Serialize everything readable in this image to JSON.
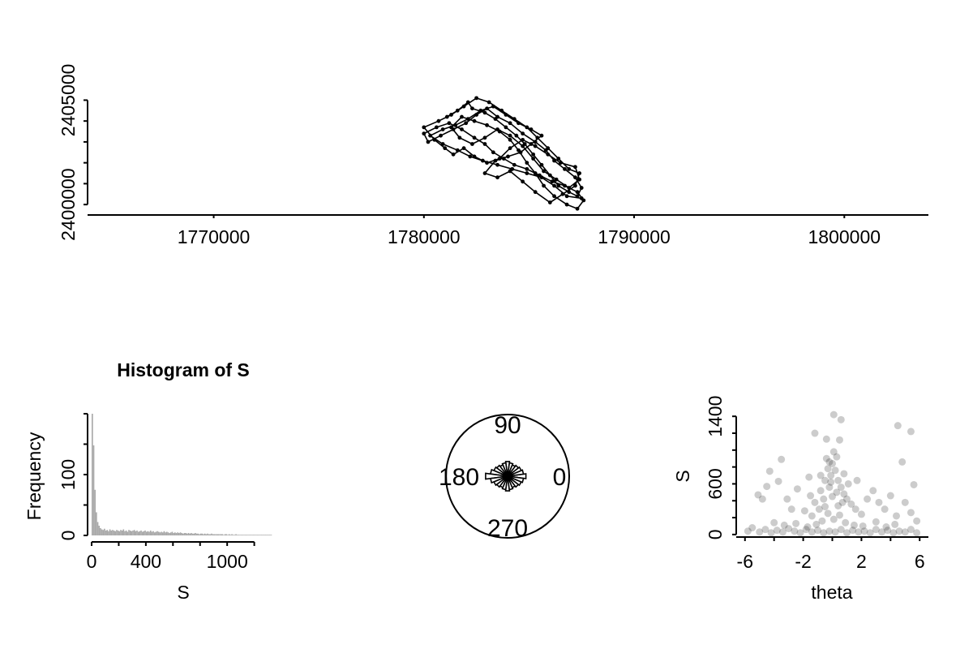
{
  "chart_data": [
    {
      "type": "line",
      "title": "",
      "xlabel": "",
      "ylabel": "",
      "xlim": [
        1764000,
        1804000
      ],
      "ylim": [
        2399500,
        2405600
      ],
      "x_ticks": [
        1770000,
        1780000,
        1790000,
        1800000
      ],
      "x_tick_labels": [
        "1770000",
        "1780000",
        "1790000",
        "1800000"
      ],
      "y_ticks": [
        2400000,
        2405000
      ],
      "y_tick_labels": [
        "2400000",
        "2405000"
      ],
      "y_minor_ticks": [
        2400000,
        2401000,
        2402000,
        2403000,
        2404000,
        2405000
      ],
      "points": [
        [
          1781100,
          2404200
        ],
        [
          1781600,
          2404500
        ],
        [
          1782100,
          2404900
        ],
        [
          1782300,
          2404600
        ],
        [
          1782900,
          2404400
        ],
        [
          1783400,
          2404100
        ],
        [
          1783900,
          2403700
        ],
        [
          1784400,
          2403300
        ],
        [
          1784800,
          2402900
        ],
        [
          1785200,
          2402400
        ],
        [
          1785600,
          2401900
        ],
        [
          1786000,
          2401400
        ],
        [
          1786400,
          2400900
        ],
        [
          1786900,
          2400600
        ],
        [
          1787300,
          2400400
        ],
        [
          1787500,
          2400800
        ],
        [
          1787200,
          2401300
        ],
        [
          1786700,
          2401700
        ],
        [
          1786200,
          2402100
        ],
        [
          1785800,
          2402600
        ],
        [
          1785300,
          2403000
        ],
        [
          1784700,
          2403400
        ],
        [
          1784100,
          2403900
        ],
        [
          1783500,
          2404200
        ],
        [
          1783000,
          2404600
        ],
        [
          1782500,
          2404300
        ],
        [
          1782000,
          2403900
        ],
        [
          1781400,
          2403600
        ],
        [
          1780800,
          2403300
        ],
        [
          1780200,
          2403000
        ],
        [
          1780000,
          2403400
        ],
        [
          1780600,
          2403700
        ],
        [
          1781200,
          2403900
        ],
        [
          1781800,
          2403600
        ],
        [
          1782400,
          2403200
        ],
        [
          1782900,
          2402900
        ],
        [
          1783300,
          2402500
        ],
        [
          1783800,
          2402200
        ],
        [
          1784300,
          2401900
        ],
        [
          1784900,
          2401700
        ],
        [
          1785500,
          2401400
        ],
        [
          1786100,
          2401100
        ],
        [
          1786700,
          2400900
        ],
        [
          1787300,
          2400600
        ],
        [
          1787600,
          2400200
        ],
        [
          1787300,
          2399800
        ],
        [
          1786800,
          2400000
        ],
        [
          1786200,
          2400400
        ],
        [
          1785700,
          2400900
        ],
        [
          1785300,
          2401500
        ],
        [
          1784900,
          2402000
        ],
        [
          1784500,
          2402600
        ],
        [
          1784100,
          2403100
        ],
        [
          1783600,
          2403500
        ],
        [
          1783000,
          2403800
        ],
        [
          1782400,
          2404000
        ],
        [
          1781800,
          2404200
        ],
        [
          1781300,
          2403700
        ],
        [
          1781700,
          2403200
        ],
        [
          1782300,
          2402900
        ],
        [
          1782900,
          2403200
        ],
        [
          1783500,
          2403600
        ],
        [
          1784100,
          2403300
        ],
        [
          1784700,
          2402800
        ],
        [
          1785200,
          2402200
        ],
        [
          1785700,
          2401600
        ],
        [
          1786300,
          2401200
        ],
        [
          1786900,
          2400800
        ],
        [
          1787400,
          2401200
        ],
        [
          1787200,
          2401800
        ],
        [
          1786500,
          2402000
        ],
        [
          1785900,
          2402400
        ],
        [
          1785300,
          2402800
        ],
        [
          1784700,
          2403100
        ],
        [
          1784100,
          2402700
        ],
        [
          1783600,
          2402200
        ],
        [
          1783000,
          2402000
        ],
        [
          1782400,
          2402300
        ],
        [
          1781900,
          2402700
        ],
        [
          1781400,
          2402400
        ],
        [
          1781000,
          2402700
        ],
        [
          1780500,
          2403100
        ],
        [
          1780000,
          2403700
        ],
        [
          1780700,
          2404000
        ],
        [
          1781300,
          2404300
        ],
        [
          1781900,
          2404700
        ],
        [
          1782500,
          2405100
        ],
        [
          1783100,
          2404900
        ],
        [
          1783700,
          2404500
        ],
        [
          1784300,
          2404100
        ],
        [
          1784900,
          2403700
        ],
        [
          1785400,
          2403200
        ],
        [
          1785900,
          2402700
        ],
        [
          1786400,
          2402200
        ],
        [
          1786900,
          2401700
        ],
        [
          1787400,
          2401500
        ],
        [
          1787200,
          2400900
        ],
        [
          1786600,
          2400500
        ],
        [
          1786000,
          2400100
        ],
        [
          1785300,
          2400600
        ],
        [
          1784700,
          2401100
        ],
        [
          1784100,
          2401600
        ],
        [
          1783500,
          2401300
        ],
        [
          1782900,
          2401500
        ],
        [
          1783400,
          2402100
        ],
        [
          1784000,
          2402300
        ],
        [
          1784600,
          2402500
        ],
        [
          1785100,
          2402900
        ],
        [
          1785600,
          2403300
        ],
        [
          1785100,
          2403600
        ],
        [
          1784500,
          2403900
        ],
        [
          1783900,
          2404300
        ],
        [
          1783300,
          2404700
        ],
        [
          1782700,
          2404500
        ],
        [
          1782100,
          2404100
        ],
        [
          1781500,
          2403800
        ],
        [
          1780900,
          2403600
        ],
        [
          1780300,
          2403300
        ],
        [
          1780900,
          2402900
        ],
        [
          1781600,
          2402600
        ],
        [
          1782200,
          2402300
        ],
        [
          1782800,
          2402100
        ],
        [
          1783500,
          2401900
        ],
        [
          1784200,
          2401700
        ],
        [
          1784900,
          2401500
        ],
        [
          1785600,
          2401300
        ],
        [
          1786200,
          2400900
        ],
        [
          1786800,
          2400400
        ],
        [
          1787500,
          2400300
        ]
      ]
    },
    {
      "type": "bar",
      "title": "Histogram of S",
      "xlabel": "S",
      "ylabel": "Frequency",
      "xlim": [
        -30,
        1340
      ],
      "ylim": [
        0,
        200
      ],
      "x_ticks": [
        0,
        400,
        1000
      ],
      "x_tick_labels": [
        "0",
        "400",
        "1000"
      ],
      "x_minor_ticks": [
        0,
        200,
        400,
        600,
        800,
        1000,
        1200
      ],
      "y_ticks": [
        0,
        100
      ],
      "y_tick_labels": [
        "0",
        "100"
      ],
      "y_minor_ticks": [
        0,
        50,
        100,
        150,
        200
      ],
      "bin_width": 10,
      "bin_start": 0,
      "values": [
        200,
        148,
        75,
        38,
        22,
        16,
        12,
        10,
        9,
        11,
        8,
        9,
        7,
        10,
        8,
        9,
        8,
        7,
        9,
        8,
        7,
        9,
        8,
        10,
        7,
        8,
        6,
        9,
        8,
        7,
        8,
        9,
        7,
        8,
        6,
        7,
        8,
        6,
        7,
        8,
        6,
        7,
        6,
        8,
        6,
        7,
        5,
        6,
        7,
        6,
        5,
        6,
        5,
        7,
        5,
        6,
        5,
        4,
        5,
        6,
        4,
        5,
        4,
        5,
        4,
        5,
        4,
        3,
        4,
        4,
        3,
        4,
        3,
        4,
        3,
        3,
        4,
        3,
        3,
        2,
        3,
        3,
        2,
        3,
        2,
        3,
        2,
        2,
        3,
        2,
        2,
        2,
        2,
        2,
        2,
        2,
        2,
        1,
        2,
        2,
        1,
        2,
        1,
        2,
        1,
        1,
        2,
        1,
        1,
        1,
        1,
        1,
        1,
        1,
        1,
        1,
        1,
        1,
        1,
        1,
        1,
        1,
        1,
        1,
        1,
        1,
        1,
        1,
        1,
        1,
        1,
        1,
        1
      ],
      "bar_color": "#aaaaaa"
    },
    {
      "type": "rose",
      "title": "",
      "labels": [
        "90",
        "180",
        "0",
        "270"
      ],
      "petal_angles_deg": [
        0,
        15,
        30,
        45,
        60,
        75,
        90,
        105,
        120,
        135,
        150,
        165,
        180,
        195,
        210,
        225,
        240,
        255,
        270,
        285,
        300,
        315,
        330,
        345
      ],
      "petal_lengths": [
        0.3,
        0.26,
        0.24,
        0.22,
        0.2,
        0.22,
        0.24,
        0.22,
        0.2,
        0.22,
        0.24,
        0.28,
        0.36,
        0.28,
        0.24,
        0.22,
        0.2,
        0.22,
        0.24,
        0.22,
        0.2,
        0.22,
        0.24,
        0.26
      ]
    },
    {
      "type": "scatter",
      "title": "",
      "xlabel": "theta",
      "ylabel": "S",
      "xlim": [
        -6.6,
        6.6
      ],
      "ylim": [
        -30,
        1450
      ],
      "x_ticks": [
        -6,
        -2,
        2,
        6
      ],
      "x_tick_labels": [
        "-6",
        "-2",
        "2",
        "6"
      ],
      "x_minor_ticks": [
        -6,
        -4,
        -2,
        0,
        2,
        4,
        6
      ],
      "y_ticks": [
        0,
        600,
        1400
      ],
      "y_tick_labels": [
        "0",
        "600",
        "1400"
      ],
      "y_minor_ticks": [
        0,
        200,
        400,
        600,
        800,
        1000,
        1200,
        1400
      ],
      "point_color": "#000000",
      "point_opacity": 0.2,
      "points": [
        [
          0.1,
          1420
        ],
        [
          0.6,
          1360
        ],
        [
          -1.2,
          1200
        ],
        [
          -0.4,
          1130
        ],
        [
          0.5,
          1120
        ],
        [
          4.5,
          1290
        ],
        [
          5.4,
          1220
        ],
        [
          -3.5,
          890
        ],
        [
          -4.3,
          750
        ],
        [
          4.8,
          860
        ],
        [
          5.6,
          590
        ],
        [
          -5.1,
          470
        ],
        [
          -4.8,
          420
        ],
        [
          -4.5,
          570
        ],
        [
          -3.7,
          630
        ],
        [
          -3.1,
          420
        ],
        [
          -2.8,
          300
        ],
        [
          -2.4,
          540
        ],
        [
          -1.9,
          280
        ],
        [
          -1.5,
          460
        ],
        [
          -1.2,
          380
        ],
        [
          -0.8,
          520
        ],
        [
          -0.5,
          640
        ],
        [
          -0.3,
          780
        ],
        [
          -0.1,
          700
        ],
        [
          0.0,
          840
        ],
        [
          0.2,
          760
        ],
        [
          0.4,
          640
        ],
        [
          0.6,
          560
        ],
        [
          0.8,
          480
        ],
        [
          1.0,
          420
        ],
        [
          1.3,
          360
        ],
        [
          1.6,
          300
        ],
        [
          2.0,
          240
        ],
        [
          -0.6,
          420
        ],
        [
          -0.2,
          560
        ],
        [
          0.3,
          500
        ],
        [
          0.7,
          380
        ],
        [
          -0.9,
          300
        ],
        [
          1.1,
          600
        ],
        [
          -1.4,
          220
        ],
        [
          2.4,
          420
        ],
        [
          2.8,
          520
        ],
        [
          3.2,
          380
        ],
        [
          3.6,
          300
        ],
        [
          4.0,
          460
        ],
        [
          4.4,
          220
        ],
        [
          5.0,
          380
        ],
        [
          5.4,
          260
        ],
        [
          5.8,
          160
        ],
        [
          -5.8,
          40
        ],
        [
          -5.5,
          80
        ],
        [
          -5.0,
          30
        ],
        [
          -4.6,
          60
        ],
        [
          -4.2,
          20
        ],
        [
          -3.8,
          50
        ],
        [
          -3.4,
          30
        ],
        [
          -3.0,
          70
        ],
        [
          -2.6,
          40
        ],
        [
          -2.2,
          20
        ],
        [
          -1.8,
          60
        ],
        [
          -1.4,
          30
        ],
        [
          -1.0,
          50
        ],
        [
          -0.6,
          20
        ],
        [
          -0.2,
          40
        ],
        [
          0.2,
          30
        ],
        [
          0.6,
          60
        ],
        [
          1.0,
          20
        ],
        [
          1.4,
          50
        ],
        [
          1.8,
          30
        ],
        [
          2.2,
          40
        ],
        [
          2.6,
          20
        ],
        [
          3.0,
          60
        ],
        [
          3.4,
          30
        ],
        [
          3.8,
          50
        ],
        [
          4.2,
          20
        ],
        [
          4.6,
          40
        ],
        [
          5.0,
          30
        ],
        [
          5.4,
          60
        ],
        [
          5.8,
          20
        ],
        [
          -0.3,
          250
        ],
        [
          0.1,
          180
        ],
        [
          0.5,
          230
        ],
        [
          -0.7,
          160
        ],
        [
          0.9,
          140
        ],
        [
          -1.1,
          120
        ],
        [
          1.5,
          110
        ],
        [
          -1.7,
          90
        ],
        [
          2.1,
          100
        ],
        [
          -2.5,
          130
        ],
        [
          3.0,
          150
        ],
        [
          -3.3,
          110
        ],
        [
          3.7,
          90
        ],
        [
          -4.0,
          140
        ],
        [
          4.3,
          120
        ],
        [
          -0.4,
          900
        ],
        [
          0.3,
          920
        ],
        [
          -0.2,
          860
        ],
        [
          0.1,
          980
        ],
        [
          -0.1,
          620
        ],
        [
          0.0,
          450
        ],
        [
          0.4,
          340
        ],
        [
          -0.5,
          330
        ],
        [
          -0.8,
          700
        ],
        [
          0.8,
          720
        ],
        [
          -1.6,
          680
        ],
        [
          1.7,
          640
        ]
      ]
    }
  ]
}
